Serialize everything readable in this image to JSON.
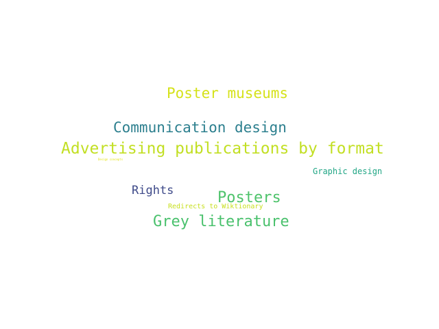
{
  "words": [
    {
      "text": "Poster museums",
      "color": "#d5e21a"
    },
    {
      "text": "Communication design",
      "color": "#2c7f8e"
    },
    {
      "text": "Advertising publications by format",
      "color": "#c2df23"
    },
    {
      "text": "Design concepts",
      "color": "#e5e419"
    },
    {
      "text": "Graphic design",
      "color": "#21a685"
    },
    {
      "text": "Rights",
      "color": "#3e4a89"
    },
    {
      "text": "Posters",
      "color": "#4ec36b"
    },
    {
      "text": "Redirects to Wiktionary",
      "color": "#c8e020"
    },
    {
      "text": "Grey literature",
      "color": "#4ac16d"
    }
  ]
}
